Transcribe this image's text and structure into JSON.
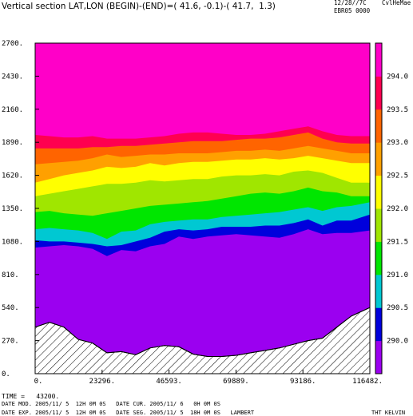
{
  "header": {
    "title": "Vertical section LAT,LON (BEGIN)-(END)=( 41.6, -0.1)-( 41.7,  1.3)",
    "sign_date": "12/28//7C",
    "sign_user": "CvlHeMae",
    "sign_code": "EBR05 0000"
  },
  "footer": {
    "time_line": "TIME =   43200.",
    "line1": "DATE MOD. 2005/11/ 5  12H 0M 0S   DATE CUR. 2005/11/ 6   0H 0M 0S",
    "line2": "DATE EXP. 2005/11/ 5  12H 0M 0S   DATE SEG. 2005/11/ 5  18H 0M 0S   LAMBERT",
    "units": "THT KELVIN"
  },
  "chart_data": {
    "type": "filled-contour",
    "title": "",
    "xlabel": "",
    "ylabel": "",
    "xlim": [
      0,
      116482
    ],
    "ylim": [
      0,
      2700
    ],
    "x_ticks": [
      "0.",
      "23296.",
      "46593.",
      "69889.",
      "93186.",
      "116482."
    ],
    "y_ticks": [
      "0.",
      "270.",
      "540.",
      "810.",
      "1080.",
      "1350.",
      "1620.",
      "1890.",
      "2160.",
      "2430.",
      "2700."
    ],
    "x_tick_values": [
      0,
      23296,
      46593,
      69889,
      93186,
      116482
    ],
    "y_tick_values": [
      0,
      270,
      540,
      810,
      1080,
      1350,
      1620,
      1890,
      2160,
      2430,
      2700
    ],
    "colorbar_ticks": [
      "290.0",
      "290.5",
      "291.0",
      "291.5",
      "292.0",
      "292.5",
      "293.0",
      "293.5",
      "294.0"
    ],
    "colorbar_values": [
      290.0,
      290.5,
      291.0,
      291.5,
      292.0,
      292.5,
      293.0,
      293.5,
      294.0
    ],
    "x": [
      0,
      5000,
      10000,
      15000,
      20000,
      25000,
      30000,
      35000,
      40000,
      45000,
      50000,
      55000,
      60000,
      65000,
      70000,
      75000,
      80000,
      85000,
      90000,
      95000,
      100000,
      105000,
      110000,
      116482
    ],
    "terrain": [
      380,
      420,
      380,
      280,
      250,
      170,
      180,
      155,
      210,
      230,
      220,
      160,
      140,
      140,
      150,
      170,
      190,
      210,
      240,
      270,
      290,
      380,
      470,
      540
    ],
    "levels": [
      {
        "value": 290.0,
        "color": "#9b00f0",
        "height": [
          1030,
          1040,
          1050,
          1040,
          1020,
          960,
          1010,
          1000,
          1040,
          1060,
          1120,
          1100,
          1120,
          1130,
          1140,
          1130,
          1120,
          1110,
          1140,
          1180,
          1140,
          1150,
          1150,
          1170
        ]
      },
      {
        "value": 290.5,
        "color": "#0000dc",
        "height": [
          1090,
          1080,
          1080,
          1070,
          1060,
          1040,
          1050,
          1080,
          1110,
          1160,
          1180,
          1170,
          1180,
          1200,
          1200,
          1200,
          1210,
          1210,
          1230,
          1260,
          1210,
          1250,
          1250,
          1300
        ]
      },
      {
        "value": 291.0,
        "color": "#00c8d2",
        "height": [
          1180,
          1190,
          1180,
          1170,
          1150,
          1100,
          1160,
          1170,
          1220,
          1240,
          1250,
          1260,
          1260,
          1280,
          1290,
          1300,
          1310,
          1320,
          1340,
          1360,
          1330,
          1360,
          1370,
          1400
        ]
      },
      {
        "value": 291.5,
        "color": "#00e600",
        "height": [
          1320,
          1330,
          1310,
          1300,
          1290,
          1310,
          1330,
          1350,
          1370,
          1380,
          1390,
          1400,
          1410,
          1430,
          1450,
          1470,
          1480,
          1470,
          1490,
          1520,
          1490,
          1480,
          1450,
          1450
        ]
      },
      {
        "value": 292.0,
        "color": "#a0e600",
        "height": [
          1450,
          1470,
          1490,
          1510,
          1530,
          1550,
          1550,
          1560,
          1580,
          1570,
          1580,
          1590,
          1590,
          1610,
          1620,
          1620,
          1630,
          1620,
          1650,
          1660,
          1640,
          1600,
          1560,
          1560
        ]
      },
      {
        "value": 292.5,
        "color": "#ffff00",
        "height": [
          1560,
          1590,
          1620,
          1640,
          1660,
          1690,
          1680,
          1690,
          1720,
          1700,
          1720,
          1730,
          1730,
          1740,
          1750,
          1750,
          1760,
          1750,
          1760,
          1780,
          1760,
          1740,
          1720,
          1720
        ]
      },
      {
        "value": 293.0,
        "color": "#ffa000",
        "height": [
          1710,
          1720,
          1730,
          1740,
          1760,
          1790,
          1770,
          1780,
          1790,
          1790,
          1800,
          1800,
          1800,
          1810,
          1820,
          1820,
          1830,
          1820,
          1840,
          1860,
          1840,
          1820,
          1800,
          1800
        ]
      },
      {
        "value": 293.5,
        "color": "#ff6400",
        "height": [
          1840,
          1840,
          1840,
          1840,
          1850,
          1850,
          1860,
          1860,
          1870,
          1880,
          1890,
          1900,
          1900,
          1900,
          1910,
          1920,
          1920,
          1930,
          1950,
          1970,
          1920,
          1890,
          1880,
          1880
        ]
      },
      {
        "value": 294.0,
        "color": "#ff0050",
        "height": [
          1950,
          1940,
          1930,
          1930,
          1940,
          1920,
          1920,
          1920,
          1930,
          1940,
          1960,
          1970,
          1970,
          1960,
          1950,
          1950,
          1960,
          1980,
          2000,
          2020,
          1980,
          1950,
          1940,
          1940
        ]
      }
    ],
    "top_color": "#ff00c8",
    "colorbar_colors": [
      "#9b00f0",
      "#0000dc",
      "#00c8d2",
      "#00e600",
      "#a0e600",
      "#ffff00",
      "#ffa000",
      "#ff6400",
      "#ff0050",
      "#ff00c8"
    ]
  }
}
